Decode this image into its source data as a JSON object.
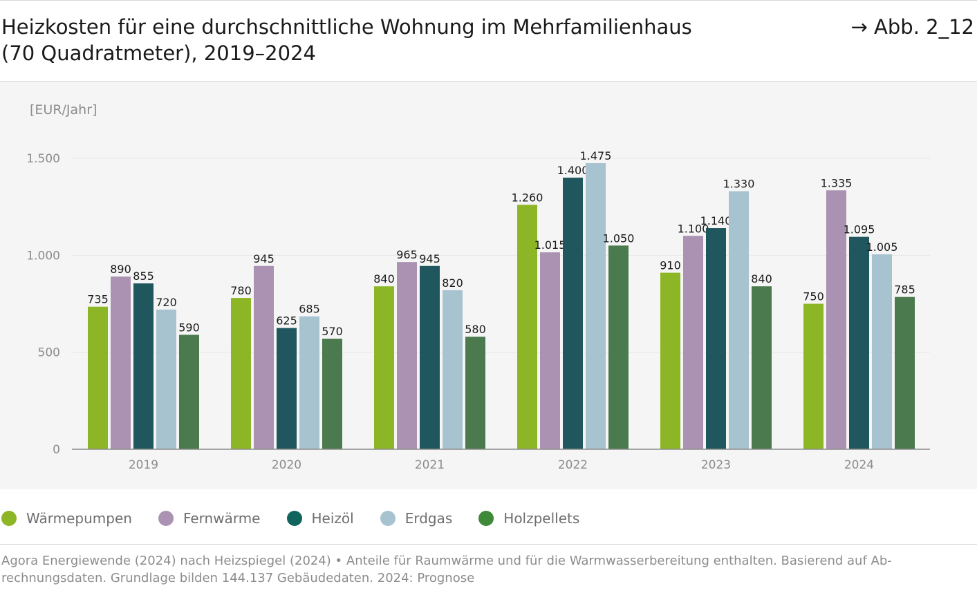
{
  "header": {
    "title_line1": "Heizkosten für eine durchschnittliche Wohnung im Mehrfamilienhaus",
    "title_line2": "(70 Quadratmeter), 2019–2024",
    "figure_ref": "→ Abb. 2_12"
  },
  "footer": {
    "source_line1": "Agora Energiewende (2024) nach Heizspiegel (2024) • Anteile für Raumwärme und für die Warmwasserbereitung enthalten. Basierend auf Ab-",
    "source_line2": "rechnungsdaten. Grundlage bilden 144.137 Gebäudedaten. 2024: Prognose"
  },
  "chart_data": {
    "type": "bar",
    "title": "Heizkosten für eine durchschnittliche Wohnung im Mehrfamilienhaus (70 Quadratmeter), 2019–2024",
    "ylabel": "[EUR/Jahr]",
    "xlabel": "",
    "ylim": [
      0,
      1500
    ],
    "yticks": [
      0,
      500,
      1000,
      1500
    ],
    "ytick_labels": [
      "0",
      "500",
      "1.000",
      "1.500"
    ],
    "grid": true,
    "legend_position": "bottom",
    "categories": [
      "2019",
      "2020",
      "2021",
      "2022",
      "2023",
      "2024"
    ],
    "series": [
      {
        "name": "Wärmepumpen",
        "color": "#8db626",
        "legend_color": "#8db626",
        "values": [
          735,
          780,
          840,
          1260,
          910,
          750
        ],
        "labels": [
          "735",
          "780",
          "840",
          "1.260",
          "910",
          "750"
        ]
      },
      {
        "name": "Fernwärme",
        "color": "#ab92b2",
        "legend_color": "#ab92b2",
        "values": [
          890,
          945,
          965,
          1015,
          1100,
          1335
        ],
        "labels": [
          "890",
          "945",
          "965",
          "1.015",
          "1.100",
          "1.335"
        ]
      },
      {
        "name": "Heizöl",
        "color": "#20565d",
        "legend_color": "#10645e",
        "values": [
          855,
          625,
          945,
          1400,
          1140,
          1095
        ],
        "labels": [
          "855",
          "625",
          "945",
          "1.400",
          "1.140",
          "1.095"
        ]
      },
      {
        "name": "Erdgas",
        "color": "#a8c3d0",
        "legend_color": "#a8c3d0",
        "values": [
          720,
          685,
          820,
          1475,
          1330,
          1005
        ],
        "labels": [
          "720",
          "685",
          "820",
          "1.475",
          "1.330",
          "1.005"
        ]
      },
      {
        "name": "Holzpellets",
        "color": "#4a7a4d",
        "legend_color": "#3e8a38",
        "values": [
          590,
          570,
          580,
          1050,
          840,
          785
        ],
        "labels": [
          "590",
          "570",
          "580",
          "1.050",
          "840",
          "785"
        ]
      }
    ]
  }
}
